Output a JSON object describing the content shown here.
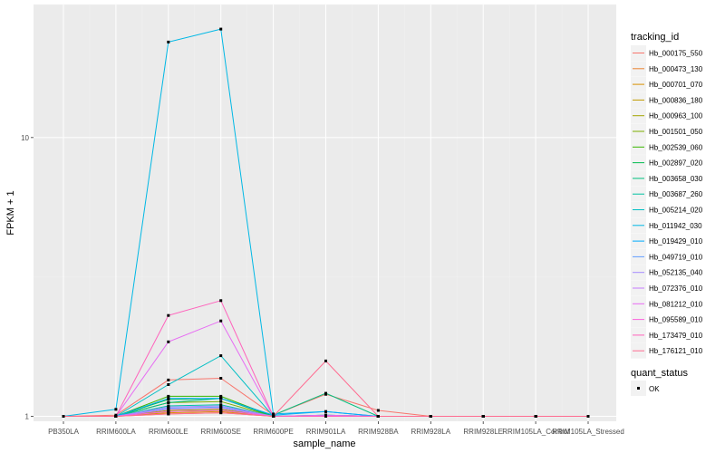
{
  "chart_data": {
    "type": "line",
    "xlabel": "sample_name",
    "ylabel": "FPKM + 1",
    "y_scale": "log",
    "y_ticks": [
      1,
      10
    ],
    "y_tick_labels": [
      "1",
      "10"
    ],
    "ylim": [
      0.96,
      30
    ],
    "grid": true,
    "legend_placement": "right",
    "categories": [
      "PB350LA",
      "RRIM600LA",
      "RRIM600LE",
      "RRIM600SE",
      "RRIM600PE",
      "RRIM901LA",
      "RRIM928BA",
      "RRIM928LA",
      "RRIM928LE",
      "RRIM105LA_Control",
      "RRIM105LA_Stressed"
    ],
    "series": [
      {
        "name": "Hb_000175_550",
        "color": "#F8766D",
        "values": [
          1.0,
          1.01,
          1.35,
          1.37,
          1.01,
          1.2,
          1.05,
          1.0,
          1.0,
          1.0,
          1.0
        ]
      },
      {
        "name": "Hb_000473_130",
        "color": "#EA8331",
        "values": [
          1.0,
          1.0,
          1.02,
          1.03,
          1.0,
          1.0,
          1.0,
          1.0,
          1.0,
          1.0,
          1.0
        ]
      },
      {
        "name": "Hb_000701_070",
        "color": "#D89000",
        "values": [
          1.0,
          1.0,
          1.03,
          1.04,
          1.0,
          1.0,
          1.0,
          1.0,
          1.0,
          1.0,
          1.0
        ]
      },
      {
        "name": "Hb_000836_180",
        "color": "#C09B00",
        "values": [
          1.0,
          1.0,
          1.04,
          1.05,
          1.0,
          1.0,
          1.0,
          1.0,
          1.0,
          1.0,
          1.0
        ]
      },
      {
        "name": "Hb_000963_100",
        "color": "#A3A500",
        "values": [
          1.0,
          1.0,
          1.05,
          1.06,
          1.0,
          1.0,
          1.0,
          1.0,
          1.0,
          1.0,
          1.0
        ]
      },
      {
        "name": "Hb_001501_050",
        "color": "#7CAE00",
        "values": [
          1.0,
          1.0,
          1.12,
          1.13,
          1.0,
          1.0,
          1.0,
          1.0,
          1.0,
          1.0,
          1.0
        ]
      },
      {
        "name": "Hb_002539_060",
        "color": "#39B600",
        "values": [
          1.0,
          1.0,
          1.18,
          1.18,
          1.0,
          1.01,
          1.0,
          1.0,
          1.0,
          1.0,
          1.0
        ]
      },
      {
        "name": "Hb_002897_020",
        "color": "#00BB4E",
        "values": [
          1.0,
          1.0,
          1.15,
          1.16,
          1.0,
          1.0,
          1.0,
          1.0,
          1.0,
          1.0,
          1.0
        ]
      },
      {
        "name": "Hb_003658_030",
        "color": "#00BF7D",
        "values": [
          1.0,
          1.0,
          1.12,
          1.16,
          1.01,
          1.21,
          1.0,
          1.0,
          1.0,
          1.0,
          1.0
        ]
      },
      {
        "name": "Hb_003687_260",
        "color": "#00C1A3",
        "values": [
          1.0,
          1.0,
          1.09,
          1.1,
          1.0,
          1.0,
          1.0,
          1.0,
          1.0,
          1.0,
          1.0
        ]
      },
      {
        "name": "Hb_005214_020",
        "color": "#00BFC4",
        "values": [
          1.0,
          1.0,
          1.3,
          1.65,
          1.0,
          1.01,
          1.0,
          1.0,
          1.0,
          1.0,
          1.0
        ]
      },
      {
        "name": "Hb_011942_030",
        "color": "#00B8E5",
        "values": [
          1.0,
          1.06,
          22.0,
          24.5,
          1.02,
          1.04,
          1.0,
          1.0,
          1.0,
          1.0,
          1.0
        ]
      },
      {
        "name": "Hb_019429_010",
        "color": "#00ABFD",
        "values": [
          1.0,
          1.0,
          1.16,
          1.16,
          1.01,
          1.04,
          1.0,
          1.0,
          1.0,
          1.0,
          1.0
        ]
      },
      {
        "name": "Hb_049719_010",
        "color": "#619CFF",
        "values": [
          1.0,
          1.0,
          1.07,
          1.08,
          1.0,
          1.0,
          1.0,
          1.0,
          1.0,
          1.0,
          1.0
        ]
      },
      {
        "name": "Hb_052135_040",
        "color": "#A58AFF",
        "values": [
          1.0,
          1.0,
          1.08,
          1.09,
          1.0,
          1.0,
          1.0,
          1.0,
          1.0,
          1.0,
          1.0
        ]
      },
      {
        "name": "Hb_072376_010",
        "color": "#C77CFF",
        "values": [
          1.0,
          1.0,
          1.06,
          1.07,
          1.0,
          1.0,
          1.0,
          1.0,
          1.0,
          1.0,
          1.0
        ]
      },
      {
        "name": "Hb_081212_010",
        "color": "#E76BF3",
        "values": [
          1.0,
          1.0,
          1.85,
          2.2,
          1.0,
          1.01,
          1.0,
          1.0,
          1.0,
          1.0,
          1.0
        ]
      },
      {
        "name": "Hb_095589_010",
        "color": "#FA62DB",
        "values": [
          1.0,
          1.0,
          1.04,
          1.05,
          1.0,
          1.0,
          1.0,
          1.0,
          1.0,
          1.0,
          1.0
        ]
      },
      {
        "name": "Hb_173479_010",
        "color": "#FF62BC",
        "values": [
          1.0,
          1.0,
          2.3,
          2.6,
          1.0,
          1.0,
          1.0,
          1.0,
          1.0,
          1.0,
          1.0
        ]
      },
      {
        "name": "Hb_176121_010",
        "color": "#FF6C91",
        "values": [
          1.0,
          1.0,
          1.02,
          1.03,
          1.0,
          1.58,
          1.0,
          1.0,
          1.0,
          1.0,
          1.0
        ]
      }
    ],
    "legend": {
      "title": "tracking_id",
      "shape_title": "quant_status",
      "shape_label": "OK"
    }
  }
}
